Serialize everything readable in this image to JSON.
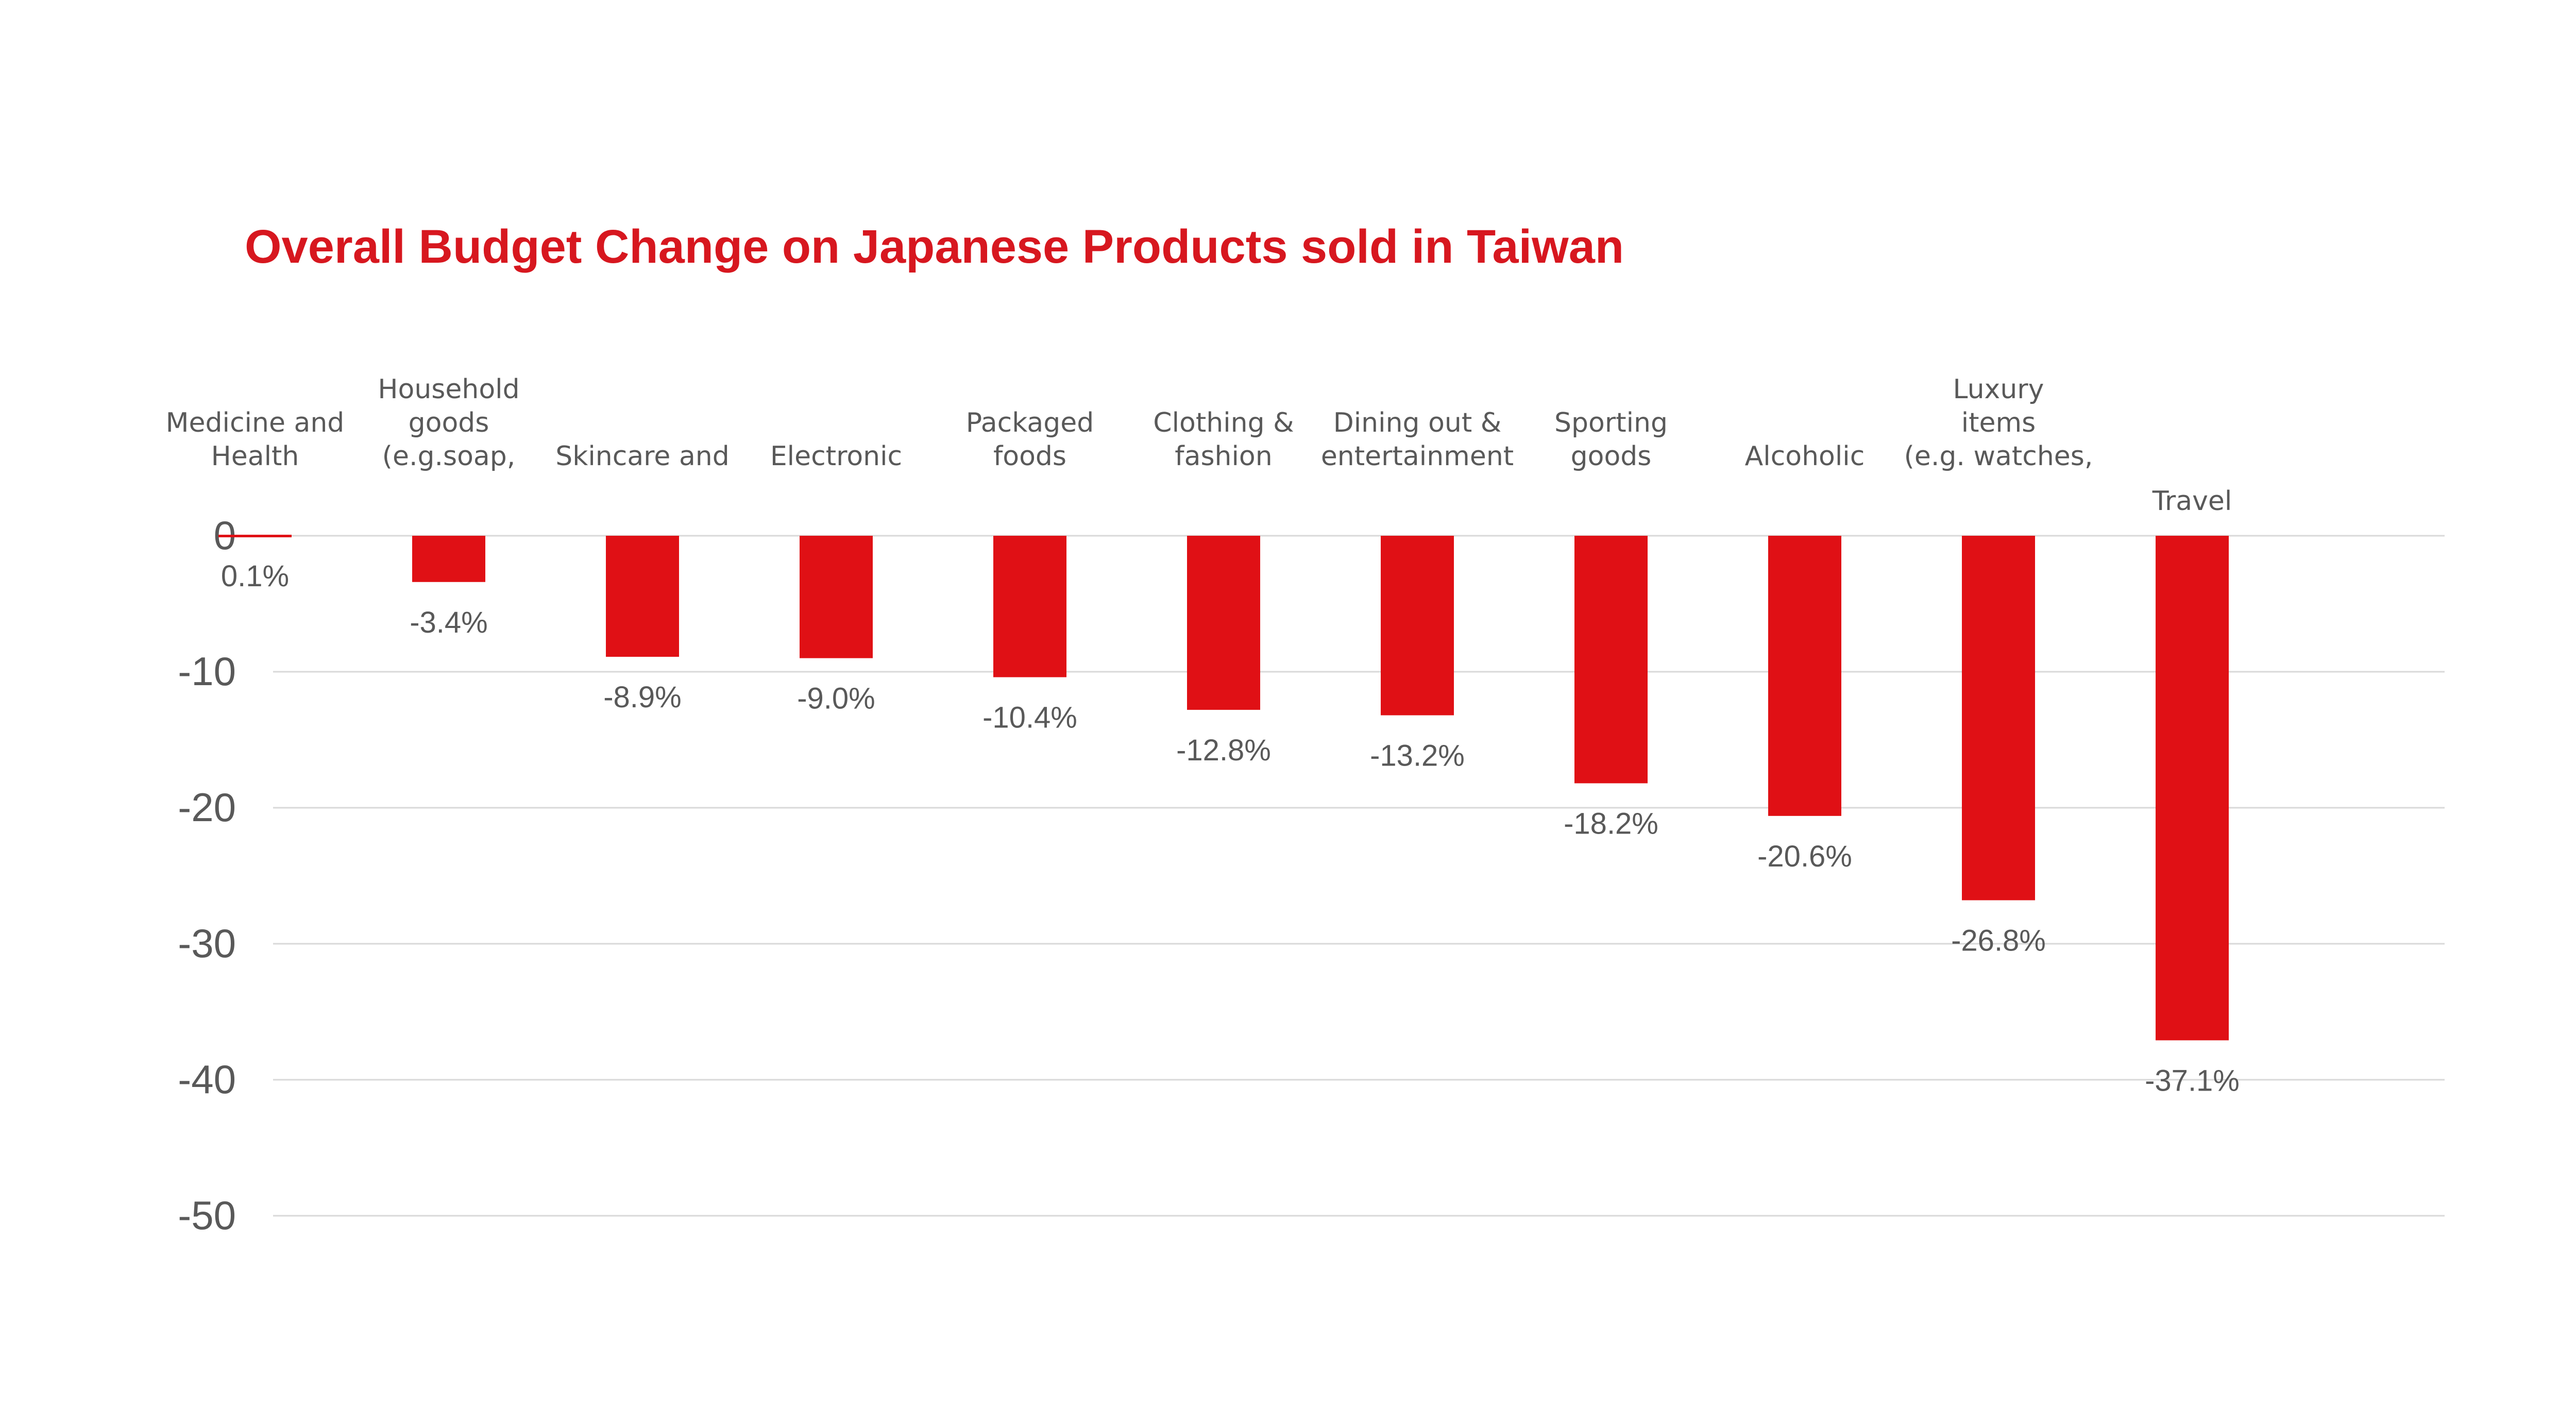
{
  "chart_data": {
    "type": "bar",
    "title": "Overall Budget Change on Japanese Products sold in Taiwan",
    "categories": [
      [
        "Medicine and",
        "Health"
      ],
      [
        "Household",
        "goods",
        "(e.g.soap,"
      ],
      [
        "Skincare and"
      ],
      [
        "Electronic"
      ],
      [
        "Packaged",
        "foods"
      ],
      [
        "Clothing &",
        "fashion"
      ],
      [
        "Dining out &",
        "entertainment"
      ],
      [
        "Sporting",
        "goods"
      ],
      [
        "Alcoholic"
      ],
      [
        "Luxury",
        "items",
        "(e.g. watches,"
      ],
      [
        "Travel"
      ]
    ],
    "values": [
      0.1,
      -3.4,
      -8.9,
      -9.0,
      -10.4,
      -12.8,
      -13.2,
      -18.2,
      -20.6,
      -26.8,
      -37.1
    ],
    "data_labels": [
      "0.1%",
      "-3.4%",
      "-8.9%",
      "-9.0%",
      "-10.4%",
      "-12.8%",
      "-13.2%",
      "-18.2%",
      "-20.6%",
      "-26.8%",
      "-37.1%"
    ],
    "yticks": [
      0,
      -10,
      -20,
      -30,
      -40,
      -50
    ],
    "ytick_labels": [
      "0",
      "-10",
      "-20",
      "-30",
      "-40",
      "-50"
    ],
    "ylim": [
      -50,
      0
    ],
    "grid": true,
    "bar_color": "#e01015",
    "title_color": "#d7171f"
  }
}
